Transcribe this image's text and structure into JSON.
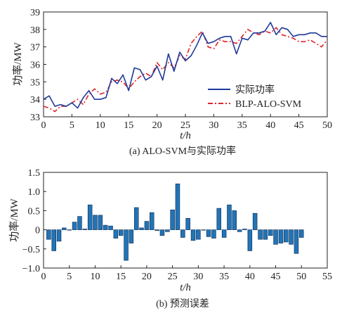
{
  "chart_data": [
    {
      "type": "line",
      "caption": "(a) ALO-SVM与实际功率",
      "xlabel": "t/h",
      "ylabel": "功率/MW",
      "xlim": [
        0,
        50
      ],
      "ylim": [
        33,
        39
      ],
      "xticks": [
        "0",
        "5",
        "10",
        "15",
        "20",
        "25",
        "30",
        "35",
        "40",
        "45",
        "50"
      ],
      "yticks": [
        "33",
        "34",
        "35",
        "36",
        "37",
        "38",
        "39"
      ],
      "legend_position": "lower-right",
      "colors": {
        "actual": "#1f3a9a",
        "predicted": "#e0242a"
      },
      "x": [
        0,
        1,
        2,
        3,
        4,
        5,
        6,
        7,
        8,
        9,
        10,
        11,
        12,
        13,
        14,
        15,
        16,
        17,
        18,
        19,
        20,
        21,
        22,
        23,
        24,
        25,
        26,
        27,
        28,
        29,
        30,
        31,
        32,
        33,
        34,
        35,
        36,
        37,
        38,
        39,
        40,
        41,
        42,
        43,
        44,
        45,
        46,
        47,
        48,
        49,
        50
      ],
      "series": [
        {
          "name": "实际功率",
          "style": "solid",
          "values": [
            34.0,
            34.2,
            33.6,
            33.7,
            33.6,
            33.8,
            33.5,
            34.1,
            34.5,
            34.0,
            34.0,
            34.1,
            35.2,
            34.9,
            35.4,
            34.5,
            35.8,
            35.7,
            35.1,
            35.3,
            35.9,
            35.1,
            36.6,
            35.6,
            36.7,
            36.2,
            36.5,
            37.1,
            37.8,
            37.2,
            37.3,
            37.5,
            37.6,
            37.6,
            36.6,
            37.5,
            37.4,
            37.8,
            37.8,
            37.9,
            38.4,
            37.7,
            38.1,
            38.0,
            37.6,
            37.7,
            37.7,
            37.8,
            37.8,
            37.6,
            37.6
          ]
        },
        {
          "name": "BLP-ALO-SVM",
          "style": "dashdot",
          "values": [
            33.6,
            33.5,
            33.3,
            33.6,
            33.6,
            33.8,
            34.0,
            33.7,
            34.3,
            34.6,
            34.3,
            34.4,
            35.0,
            35.1,
            35.0,
            34.6,
            35.0,
            35.3,
            35.5,
            35.3,
            36.1,
            35.7,
            36.1,
            35.8,
            36.5,
            36.3,
            37.2,
            37.6,
            37.9,
            37.0,
            36.9,
            37.4,
            37.3,
            37.3,
            37.2,
            37.6,
            38.0,
            37.8,
            37.7,
            37.9,
            37.8,
            38.1,
            37.7,
            37.6,
            37.5,
            37.3,
            37.3,
            37.4,
            37.2,
            37.0,
            37.4
          ]
        }
      ]
    },
    {
      "type": "bar",
      "caption": "(b) 预测误差",
      "xlabel": "t/h",
      "ylabel": "功率/MW",
      "xlim": [
        0,
        55
      ],
      "ylim": [
        -1.0,
        1.5
      ],
      "xticks": [
        "0",
        "5",
        "10",
        "15",
        "20",
        "25",
        "30",
        "35",
        "40",
        "45",
        "50",
        "55"
      ],
      "yticks": [
        "−1.0",
        "−0.5",
        "0",
        "0.5",
        "1.0",
        "1.5"
      ],
      "bar_color": "#2274b5",
      "x": [
        1,
        2,
        3,
        4,
        5,
        6,
        7,
        8,
        9,
        10,
        11,
        12,
        13,
        14,
        15,
        16,
        17,
        18,
        19,
        20,
        21,
        22,
        23,
        24,
        25,
        26,
        27,
        28,
        29,
        30,
        31,
        32,
        33,
        34,
        35,
        36,
        37,
        38,
        39,
        40,
        41,
        42,
        43,
        44,
        45,
        46,
        47,
        48,
        49,
        50
      ],
      "values": [
        -0.25,
        -0.55,
        -0.3,
        0.05,
        0.0,
        0.2,
        0.35,
        0.02,
        0.65,
        0.38,
        0.38,
        0.12,
        0.1,
        -0.22,
        -0.15,
        -0.8,
        -0.35,
        0.58,
        0.05,
        0.22,
        0.45,
        -0.02,
        -0.15,
        -0.05,
        0.52,
        1.2,
        -0.2,
        0.3,
        -0.28,
        -0.25,
        0.0,
        -0.18,
        -0.22,
        0.56,
        -0.2,
        0.65,
        0.5,
        -0.05,
        0.02,
        -0.55,
        0.43,
        -0.25,
        -0.25,
        -0.15,
        -0.38,
        -0.35,
        -0.32,
        -0.38,
        -0.62,
        -0.2
      ]
    }
  ]
}
